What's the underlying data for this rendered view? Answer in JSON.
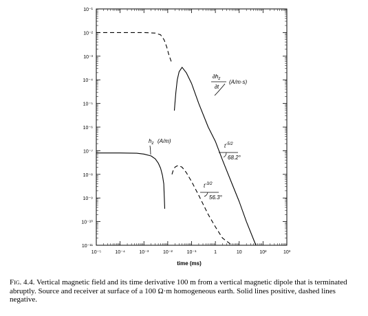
{
  "chart_data": {
    "type": "line",
    "title": "",
    "xlabel": "time (ms)",
    "ylabel": "",
    "xscale": "log",
    "yscale": "log",
    "xlim": [
      1e-05,
      1000
    ],
    "ylim": [
      1e-11,
      0.1
    ],
    "grid": false,
    "x_tick_labels": [
      "10⁻⁵",
      "10⁻⁴",
      "10⁻³",
      "10⁻²",
      "10⁻¹",
      "1",
      "10",
      "10²",
      "10³"
    ],
    "y_tick_labels": [
      "10⁻¹¹",
      "10⁻¹⁰",
      "10⁻⁹",
      "10⁻⁸",
      "10⁻⁷",
      "10⁻⁶",
      "10⁻⁵",
      "10⁻⁴",
      "10⁻³",
      "10⁻²",
      "10⁻¹"
    ],
    "series": [
      {
        "name": "∂hz/∂t (A/m·s)",
        "segments": [
          {
            "sign": "negative",
            "style": "dashed",
            "x": [
              1e-05,
              0.0001,
              0.001,
              0.003,
              0.005,
              0.007,
              0.009,
              0.011,
              0.014
            ],
            "y": [
              0.01,
              0.01,
              0.01,
              0.0095,
              0.008,
              0.005,
              0.0025,
              0.0012,
              0.0006
            ]
          },
          {
            "sign": "positive",
            "style": "solid",
            "x": [
              0.019,
              0.02,
              0.022,
              0.025,
              0.03,
              0.04,
              0.06,
              0.1,
              0.2,
              0.5,
              1,
              2,
              5,
              10,
              20,
              50,
              70
            ],
            "y": [
              5e-06,
              1e-05,
              3e-05,
              0.0001,
              0.00022,
              0.00034,
              0.0002,
              7e-05,
              1e-05,
              1e-06,
              2.5e-07,
              4e-08,
              4e-09,
              7e-10,
              1e-10,
              7e-12,
              1e-11
            ]
          }
        ]
      },
      {
        "name": "hz (A/m)",
        "segments": [
          {
            "sign": "positive",
            "style": "solid",
            "x": [
              1e-05,
              0.0001,
              0.0005,
              0.001,
              0.002,
              0.003,
              0.004,
              0.005,
              0.006,
              0.0068,
              0.0072,
              0.0075
            ],
            "y": [
              8e-08,
              8e-08,
              7.8e-08,
              7.2e-08,
              6e-08,
              4.5e-08,
              3e-08,
              1.8e-08,
              9e-09,
              4e-09,
              1e-09,
              3.5e-10
            ]
          },
          {
            "sign": "negative",
            "style": "dashed",
            "x": [
              0.015,
              0.017,
              0.02,
              0.025,
              0.03,
              0.04,
              0.06,
              0.1,
              0.2,
              0.5,
              1,
              2,
              5,
              10
            ],
            "y": [
              1e-08,
              1.5e-08,
              2e-08,
              2.3e-08,
              2.3e-08,
              2e-08,
              1.2e-08,
              5e-09,
              1.3e-09,
              2e-10,
              6e-11,
              2e-11,
              7e-12,
              2e-12
            ]
          }
        ]
      }
    ],
    "annotations": [
      {
        "label": "∂h",
        "sub": "z",
        "denominator": "∂t",
        "units": "(A/m·s)"
      },
      {
        "label": "h",
        "sub": "z",
        "units": "(A/m)"
      },
      {
        "label": "t",
        "sup": "-5/2",
        "angle": "68.2°"
      },
      {
        "label": "t",
        "sup": "-3/2",
        "angle": "56.3°"
      }
    ]
  },
  "caption": {
    "prefix": "Fig. 4.4.",
    "text": "Vertical magnetic field and its time derivative 100 m from a vertical magnetic dipole that is terminated abruptly. Source and receiver at surface of a 100 Ω·m homogeneous earth. Solid lines positive, dashed lines negative."
  }
}
